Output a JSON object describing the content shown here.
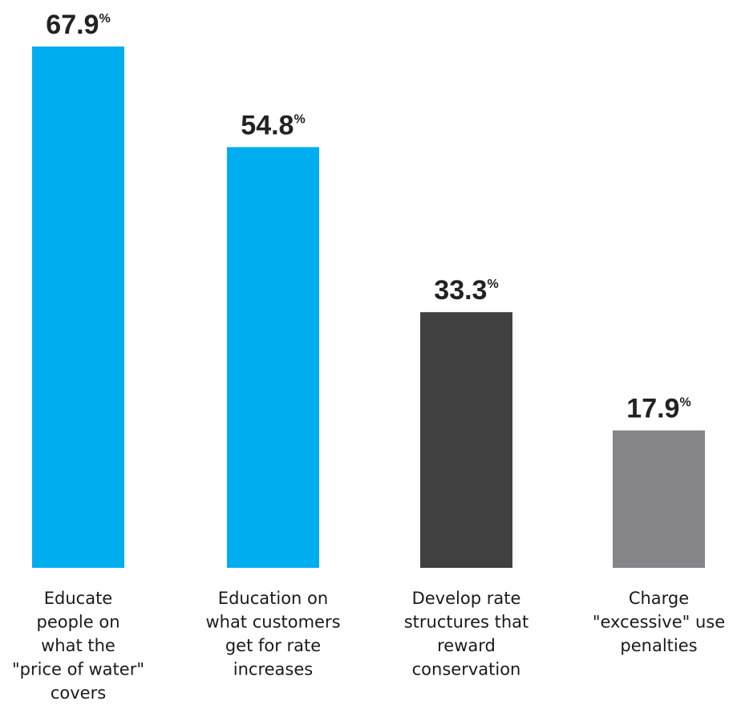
{
  "chart_data": {
    "type": "bar",
    "categories": [
      [
        "Educate",
        "people on",
        "what the",
        "\"price of water\"",
        "covers"
      ],
      [
        "Education on",
        "what customers",
        "get for rate",
        "increases"
      ],
      [
        "Develop rate",
        "structures that",
        "reward",
        "conservation"
      ],
      [
        "Charge",
        "\"excessive\" use",
        "penalties"
      ]
    ],
    "values": [
      67.9,
      54.8,
      33.3,
      17.9
    ],
    "value_labels": [
      "67.9",
      "54.8",
      "33.3",
      "17.9"
    ],
    "unit": "%",
    "colors": [
      "#00aeef",
      "#00aeef",
      "#414141",
      "#848489"
    ],
    "ylim": [
      0,
      67.9
    ],
    "grid": false,
    "legend": "none"
  }
}
